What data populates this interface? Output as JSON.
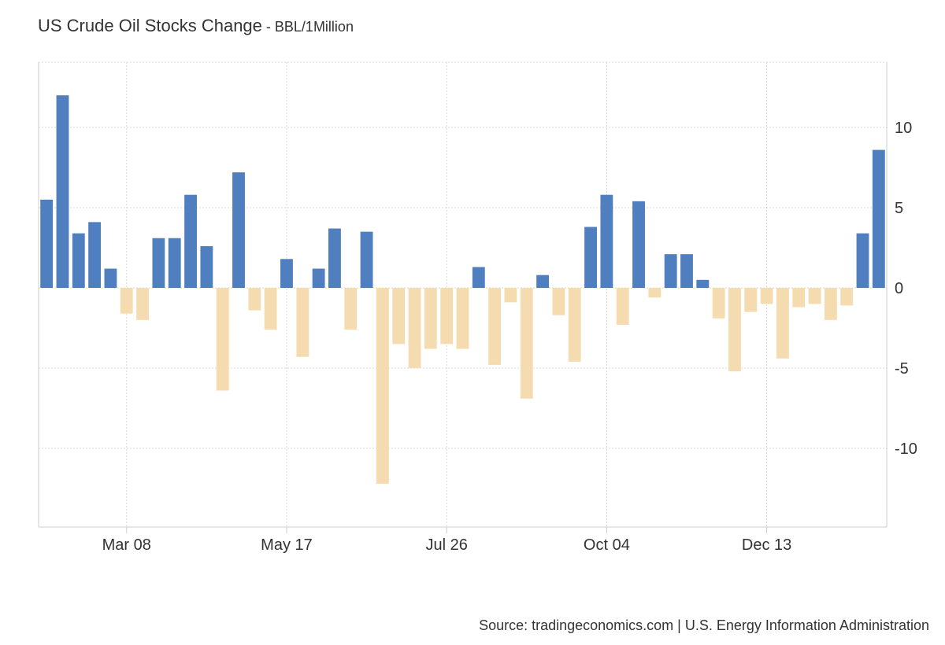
{
  "header": {
    "title": "US Crude Oil Stocks Change",
    "separator": " - ",
    "unit": "BBL/1Million"
  },
  "footer": {
    "source": "Source: tradingeconomics.com | U.S. Energy Information Administration"
  },
  "colors": {
    "positive": "#4f7fbe",
    "negative": "#f5dcb0",
    "grid": "#d8d8d8",
    "axis": "#cccccc",
    "text": "#333333"
  },
  "chart_data": {
    "type": "bar",
    "title": "US Crude Oil Stocks Change",
    "subtitle": "BBL/1Million",
    "xlabel": "",
    "ylabel": "",
    "ylim": [
      -15,
      14
    ],
    "yticks": [
      10,
      5,
      0,
      -5,
      -10
    ],
    "ytick_labels": [
      "10",
      "5",
      "0",
      "-5",
      "-10"
    ],
    "x_tick_labels": [
      {
        "label": "Mar 08",
        "index": 5.5
      },
      {
        "label": "May 17",
        "index": 15.5
      },
      {
        "label": "Jul 26",
        "index": 25.5
      },
      {
        "label": "Oct 04",
        "index": 35.5
      },
      {
        "label": "Dec 13",
        "index": 45.5
      }
    ],
    "grid": true,
    "legend": "none",
    "y_axis_side": "right",
    "values": [
      5.5,
      12.0,
      3.4,
      4.1,
      1.2,
      -1.6,
      -2.0,
      3.1,
      3.1,
      5.8,
      2.6,
      -6.4,
      7.2,
      -1.4,
      -2.6,
      1.8,
      -4.3,
      1.2,
      3.7,
      -2.6,
      3.5,
      -12.2,
      -3.5,
      -5.0,
      -3.8,
      -3.5,
      -3.8,
      1.3,
      -4.8,
      -0.9,
      -6.9,
      0.8,
      -1.7,
      -4.6,
      3.8,
      5.8,
      -2.3,
      5.4,
      -0.6,
      2.1,
      2.1,
      0.5,
      -1.9,
      -5.2,
      -1.5,
      -1.0,
      -4.4,
      -1.2,
      -1.0,
      -2.0,
      -1.1,
      3.4,
      8.6
    ]
  }
}
